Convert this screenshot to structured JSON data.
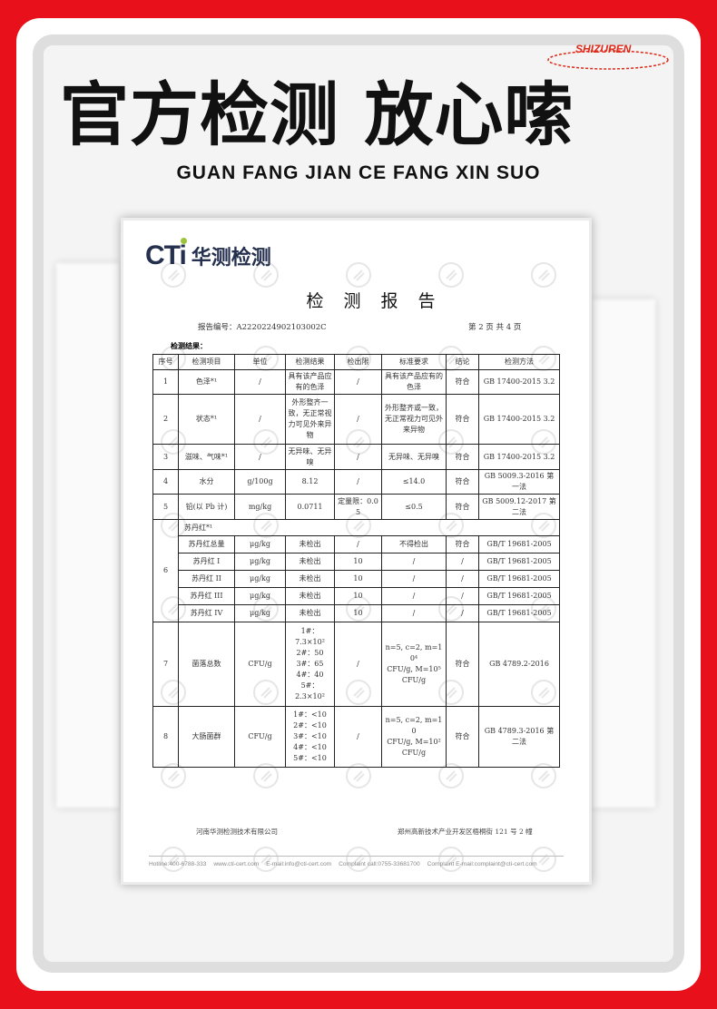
{
  "banner": {
    "title": "官方检测 放心嗦",
    "subtitle": "GUAN FANG JIAN CE FANG XIN SUO",
    "ring_text": "SHIZUREN",
    "background": "#e8101a"
  },
  "report": {
    "logo_latin": "CTi",
    "logo_cn": "华测检测",
    "title": "检 测 报 告",
    "report_no": "报告编号：A2220224902103002C",
    "page": "第 2 页  共 4 页",
    "section": "检测结果：",
    "headers": [
      "序号",
      "检测项目",
      "单位",
      "检测结果",
      "检出限",
      "标准要求",
      "结论",
      "检测方法"
    ],
    "rows": [
      {
        "no": "1",
        "item": "色泽*¹",
        "unit": "/",
        "result": "具有该产品应有的色泽",
        "limit": "/",
        "req": "具有该产品应有的色泽",
        "concl": "符合",
        "method": "GB 17400-2015 3.2"
      },
      {
        "no": "2",
        "item": "状态*¹",
        "unit": "/",
        "result": "外形整齐一致，无正常视力可见外来异物",
        "limit": "/",
        "req": "外形整齐或一致，无正常视力可见外来异物",
        "concl": "符合",
        "method": "GB 17400-2015 3.2"
      },
      {
        "no": "3",
        "item": "滋味、气味*¹",
        "unit": "/",
        "result": "无异味、无异嗅",
        "limit": "/",
        "req": "无异味、无异嗅",
        "concl": "符合",
        "method": "GB 17400-2015 3.2"
      },
      {
        "no": "4",
        "item": "水分",
        "unit": "g/100g",
        "result": "8.12",
        "limit": "/",
        "req": "≤14.0",
        "concl": "符合",
        "method": "GB 5009.3-2016 第一法"
      },
      {
        "no": "5",
        "item": "铅(以 Pb 计)",
        "unit": "mg/kg",
        "result": "0.0711",
        "limit": "定量限：0.05",
        "req": "≤0.5",
        "concl": "符合",
        "method": "GB 5009.12-2017 第二法"
      }
    ],
    "row6": {
      "no": "6",
      "group": "苏丹红*¹",
      "sub": [
        {
          "item": "苏丹红总量",
          "unit": "μg/kg",
          "result": "未检出",
          "limit": "/",
          "req": "不得检出",
          "concl": "符合",
          "method": "GB/T 19681-2005"
        },
        {
          "item": "苏丹红 I",
          "unit": "μg/kg",
          "result": "未检出",
          "limit": "10",
          "req": "/",
          "concl": "/",
          "method": "GB/T 19681-2005"
        },
        {
          "item": "苏丹红 II",
          "unit": "μg/kg",
          "result": "未检出",
          "limit": "10",
          "req": "/",
          "concl": "/",
          "method": "GB/T 19681-2005"
        },
        {
          "item": "苏丹红 III",
          "unit": "μg/kg",
          "result": "未检出",
          "limit": "10",
          "req": "/",
          "concl": "/",
          "method": "GB/T 19681-2005"
        },
        {
          "item": "苏丹红 IV",
          "unit": "μg/kg",
          "result": "未检出",
          "limit": "10",
          "req": "/",
          "concl": "/",
          "method": "GB/T 19681-2005"
        }
      ]
    },
    "row7": {
      "no": "7",
      "item": "菌落总数",
      "unit": "CFU/g",
      "result": [
        "1#：",
        "7.3×10²",
        "2#：50",
        "3#：65",
        "4#：40",
        "5#：",
        "2.3×10²"
      ],
      "limit": "/",
      "req": [
        "n=5, c=2, m=10⁴",
        "CFU/g, M=10⁵",
        "CFU/g"
      ],
      "concl": "符合",
      "method": "GB 4789.2-2016"
    },
    "row8": {
      "no": "8",
      "item": "大肠菌群",
      "unit": "CFU/g",
      "result": [
        "1#：<10",
        "2#：<10",
        "3#：<10",
        "4#：<10",
        "5#：<10"
      ],
      "limit": "/",
      "req": [
        "n=5, c=2, m=10",
        "CFU/g, M=10²",
        "CFU/g"
      ],
      "concl": "符合",
      "method": "GB 4789.3-2016 第二法"
    },
    "company": "河南华测检测技术有限公司",
    "address": "郑州高新技术产业开发区梧桐街 121 号 2 幢",
    "contacts": [
      "Hotline:400-6788-333",
      "www.cti-cert.com",
      "E-mail:info@cti-cert.com",
      "Complaint call:0755-33681700",
      "Complaint E-mail:complaint@cti-cert.com"
    ],
    "watermark": "CTI"
  }
}
